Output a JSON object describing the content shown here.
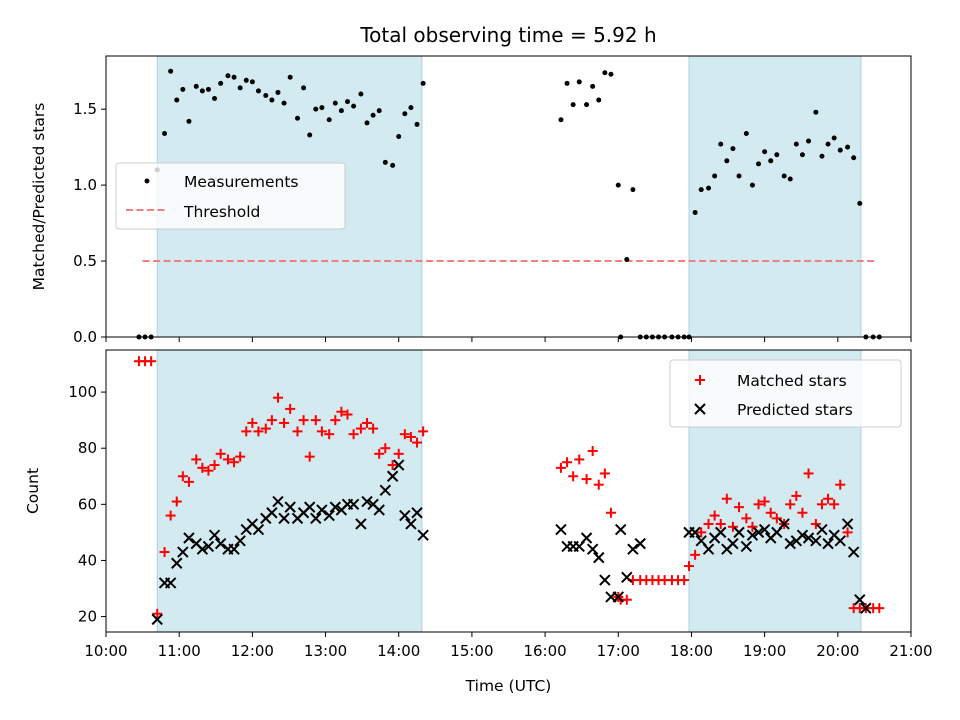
{
  "chart_data": [
    {
      "type": "scatter",
      "title": "Total observing time = 5.92 h",
      "xlabel": "",
      "ylabel": "Matched/Predicted stars",
      "xlim": [
        "10:00",
        "21:00"
      ],
      "ylim": [
        0,
        1.85
      ],
      "yticks": [
        0.0,
        0.5,
        1.0,
        1.5
      ],
      "ytick_labels": [
        "0.0",
        "0.5",
        "1.0",
        "1.5"
      ],
      "legend_position": "center-left",
      "shaded_intervals": [
        [
          "10:42",
          "14:19"
        ],
        [
          "17:58",
          "20:19"
        ]
      ],
      "shade_color": "#d4eaf1",
      "threshold": {
        "name": "Threshold",
        "y": 0.5,
        "x_range": [
          "10:30",
          "20:32"
        ],
        "color": "#f08080"
      },
      "series": [
        {
          "name": "Measurements",
          "color": "#000000",
          "marker": "dot",
          "x": [
            "10:27",
            "10:32",
            "10:37",
            "10:42",
            "10:48",
            "10:53",
            "10:58",
            "11:03",
            "11:08",
            "11:14",
            "11:19",
            "11:24",
            "11:29",
            "11:34",
            "11:40",
            "11:45",
            "11:50",
            "11:55",
            "12:00",
            "12:05",
            "12:11",
            "12:16",
            "12:21",
            "12:26",
            "12:31",
            "12:37",
            "12:42",
            "12:47",
            "12:52",
            "12:57",
            "13:03",
            "13:08",
            "13:13",
            "13:18",
            "13:23",
            "13:29",
            "13:34",
            "13:39",
            "13:44",
            "13:49",
            "13:55",
            "14:00",
            "14:05",
            "14:10",
            "14:15",
            "14:20",
            "16:13",
            "16:18",
            "16:23",
            "16:28",
            "16:34",
            "16:39",
            "16:44",
            "16:49",
            "16:54",
            "17:00",
            "17:02",
            "17:07",
            "17:12",
            "17:18",
            "17:23",
            "17:28",
            "17:33",
            "17:38",
            "17:44",
            "17:49",
            "17:54",
            "17:58",
            "18:03",
            "18:08",
            "18:14",
            "18:19",
            "18:24",
            "18:29",
            "18:34",
            "18:39",
            "18:45",
            "18:50",
            "18:55",
            "19:00",
            "19:05",
            "19:10",
            "19:16",
            "19:21",
            "19:26",
            "19:31",
            "19:36",
            "19:42",
            "19:47",
            "19:52",
            "19:57",
            "20:02",
            "20:08",
            "20:13",
            "20:18",
            "20:23",
            "20:29",
            "20:34"
          ],
          "y": [
            0,
            0,
            0,
            1.1,
            1.34,
            1.75,
            1.56,
            1.63,
            1.42,
            1.65,
            1.62,
            1.63,
            1.57,
            1.67,
            1.72,
            1.71,
            1.64,
            1.69,
            1.68,
            1.62,
            1.59,
            1.56,
            1.61,
            1.54,
            1.71,
            1.44,
            1.64,
            1.33,
            1.5,
            1.51,
            1.43,
            1.54,
            1.49,
            1.55,
            1.52,
            1.6,
            1.41,
            1.46,
            1.49,
            1.15,
            1.13,
            1.32,
            1.47,
            1.51,
            1.4,
            1.67,
            1.43,
            1.67,
            1.53,
            1.68,
            1.53,
            1.65,
            1.56,
            1.74,
            1.73,
            1.0,
            0,
            0.51,
            0.97,
            0,
            0,
            0,
            0,
            0,
            0,
            0,
            0,
            0,
            0.82,
            0.97,
            0.98,
            1.06,
            1.27,
            1.16,
            1.24,
            1.06,
            1.34,
            1.0,
            1.14,
            1.22,
            1.16,
            1.2,
            1.06,
            1.04,
            1.27,
            1.2,
            1.29,
            1.48,
            1.19,
            1.27,
            1.31,
            1.23,
            1.25,
            1.18,
            0.88,
            0,
            0,
            0
          ]
        }
      ]
    },
    {
      "type": "scatter",
      "title": "",
      "xlabel": "Time (UTC)",
      "ylabel": "Count",
      "xlim": [
        "10:00",
        "21:00"
      ],
      "ylim": [
        14.5,
        115
      ],
      "xticks": [
        "10:00",
        "11:00",
        "12:00",
        "13:00",
        "14:00",
        "15:00",
        "16:00",
        "17:00",
        "18:00",
        "19:00",
        "20:00",
        "21:00"
      ],
      "yticks": [
        20,
        40,
        60,
        80,
        100
      ],
      "legend_position": "top-right",
      "shaded_intervals": [
        [
          "10:42",
          "14:19"
        ],
        [
          "17:58",
          "20:19"
        ]
      ],
      "series": [
        {
          "name": "Matched stars",
          "color": "#ff0000",
          "marker": "plus",
          "x": [
            "10:27",
            "10:32",
            "10:37",
            "10:42",
            "10:48",
            "10:53",
            "10:58",
            "11:03",
            "11:08",
            "11:14",
            "11:19",
            "11:24",
            "11:29",
            "11:34",
            "11:40",
            "11:45",
            "11:50",
            "11:55",
            "12:00",
            "12:05",
            "12:11",
            "12:16",
            "12:21",
            "12:26",
            "12:31",
            "12:37",
            "12:42",
            "12:47",
            "12:52",
            "12:57",
            "13:03",
            "13:08",
            "13:13",
            "13:18",
            "13:23",
            "13:29",
            "13:34",
            "13:39",
            "13:44",
            "13:49",
            "13:55",
            "14:00",
            "14:05",
            "14:10",
            "14:15",
            "14:20",
            "16:13",
            "16:18",
            "16:23",
            "16:28",
            "16:34",
            "16:39",
            "16:44",
            "16:49",
            "16:54",
            "17:00",
            "17:02",
            "17:07",
            "17:12",
            "17:18",
            "17:23",
            "17:28",
            "17:33",
            "17:38",
            "17:44",
            "17:49",
            "17:54",
            "17:58",
            "18:03",
            "18:08",
            "18:14",
            "18:19",
            "18:24",
            "18:29",
            "18:34",
            "18:39",
            "18:45",
            "18:50",
            "18:55",
            "19:00",
            "19:05",
            "19:10",
            "19:16",
            "19:21",
            "19:26",
            "19:31",
            "19:36",
            "19:42",
            "19:47",
            "19:52",
            "19:57",
            "20:02",
            "20:08",
            "20:13",
            "20:18",
            "20:23",
            "20:29",
            "20:34"
          ],
          "y": [
            111,
            111,
            111,
            21,
            43,
            56,
            61,
            70,
            68,
            76,
            73,
            72,
            74,
            78,
            76,
            75,
            77,
            86,
            89,
            86,
            87,
            90,
            98,
            89,
            94,
            86,
            90,
            77,
            90,
            86,
            85,
            90,
            93,
            92,
            85,
            87,
            89,
            87,
            78,
            80,
            74,
            78,
            85,
            84,
            82,
            86,
            73,
            75,
            70,
            76,
            69,
            79,
            67,
            71,
            57,
            27,
            26,
            26,
            33,
            33,
            33,
            33,
            33,
            33,
            33,
            33,
            33,
            38,
            42,
            50,
            53,
            56,
            53,
            62,
            52,
            59,
            55,
            52,
            60,
            61,
            57,
            55,
            53,
            60,
            63,
            57,
            71,
            53,
            60,
            62,
            60,
            67,
            50,
            23,
            23,
            23,
            23,
            23
          ]
        },
        {
          "name": "Predicted stars",
          "color": "#000000",
          "marker": "x",
          "x": [
            "10:42",
            "10:48",
            "10:53",
            "10:58",
            "11:03",
            "11:08",
            "11:14",
            "11:19",
            "11:24",
            "11:29",
            "11:34",
            "11:40",
            "11:45",
            "11:50",
            "11:55",
            "12:00",
            "12:05",
            "12:11",
            "12:16",
            "12:21",
            "12:26",
            "12:31",
            "12:37",
            "12:42",
            "12:47",
            "12:52",
            "12:57",
            "13:03",
            "13:08",
            "13:13",
            "13:18",
            "13:23",
            "13:29",
            "13:34",
            "13:39",
            "13:44",
            "13:49",
            "13:55",
            "14:00",
            "14:05",
            "14:10",
            "14:15",
            "14:20",
            "16:13",
            "16:18",
            "16:23",
            "16:28",
            "16:34",
            "16:39",
            "16:44",
            "16:49",
            "16:54",
            "17:00",
            "17:02",
            "17:07",
            "17:12",
            "17:18",
            "17:58",
            "18:03",
            "18:08",
            "18:14",
            "18:19",
            "18:24",
            "18:29",
            "18:34",
            "18:39",
            "18:45",
            "18:50",
            "18:55",
            "19:00",
            "19:05",
            "19:10",
            "19:16",
            "19:21",
            "19:26",
            "19:31",
            "19:36",
            "19:42",
            "19:47",
            "19:52",
            "19:57",
            "20:02",
            "20:08",
            "20:13",
            "20:18",
            "20:23"
          ],
          "y": [
            19,
            32,
            32,
            39,
            43,
            48,
            46,
            44,
            45,
            49,
            46,
            44,
            44,
            47,
            51,
            53,
            51,
            55,
            57,
            61,
            55,
            59,
            55,
            57,
            59,
            55,
            58,
            56,
            59,
            58,
            60,
            60,
            53,
            61,
            60,
            58,
            65,
            70,
            74,
            56,
            53,
            57,
            49,
            51,
            45,
            45,
            45,
            48,
            44,
            41,
            33,
            27,
            27,
            51,
            34,
            44,
            46,
            50,
            50,
            47,
            44,
            48,
            50,
            44,
            46,
            50,
            45,
            49,
            50,
            51,
            48,
            50,
            53,
            46,
            47,
            49,
            48,
            47,
            51,
            46,
            49,
            47,
            53,
            43,
            26,
            23
          ]
        }
      ]
    }
  ]
}
